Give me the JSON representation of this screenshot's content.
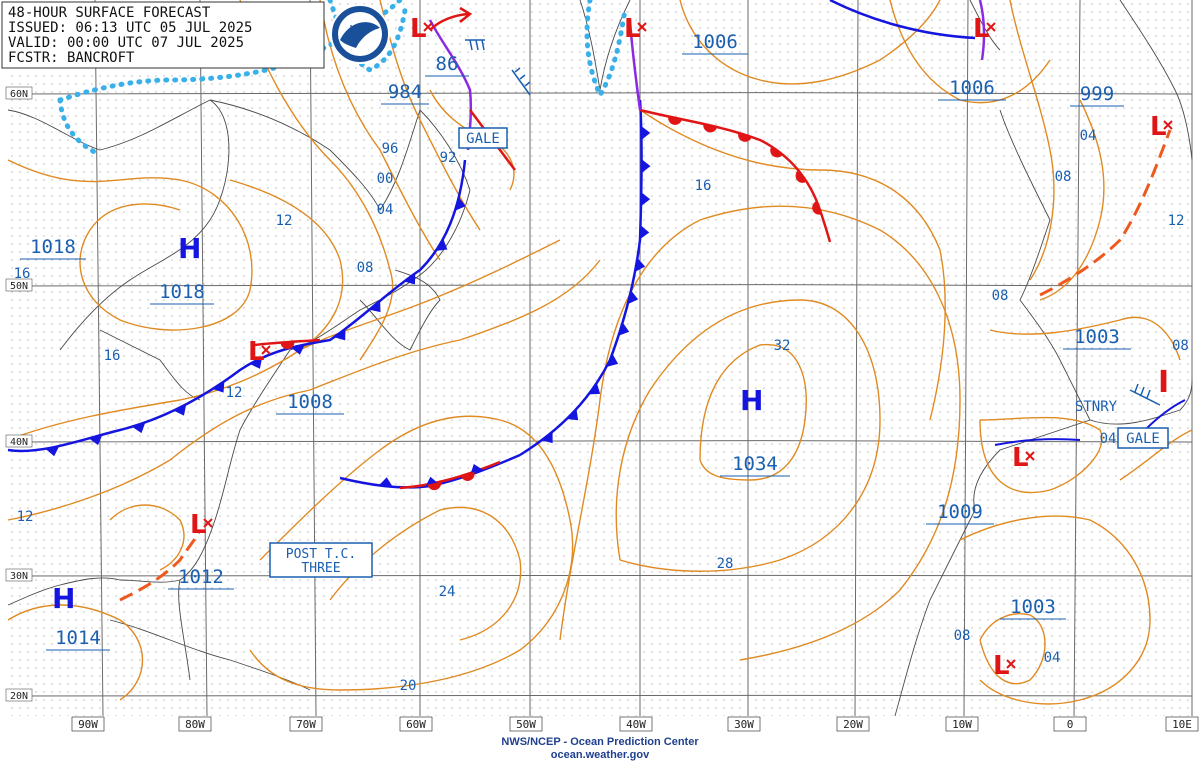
{
  "header": {
    "line1": "48-HOUR SURFACE FORECAST",
    "line2": "ISSUED: 06:13 UTC 05 JUL 2025",
    "line3": "VALID:  00:00 UTC 07 JUL 2025",
    "line4": "FCSTR: BANCROFT",
    "logo_text": "NOAA"
  },
  "footer": {
    "agency": "NWS/NCEP - Ocean Prediction Center",
    "site": "ocean.weather.gov"
  },
  "axes": {
    "lon_labels": [
      "90W",
      "80W",
      "70W",
      "60W",
      "50W",
      "40W",
      "30W",
      "20W",
      "10W",
      "0",
      "10E"
    ],
    "lat_labels": [
      "60N",
      "50N",
      "40N",
      "30N",
      "20N"
    ]
  },
  "pressure_centers": [
    {
      "type": "H",
      "label": "1018",
      "name": "high-great-lakes"
    },
    {
      "type": "H",
      "label": "1034",
      "name": "high-central-atlantic"
    },
    {
      "type": "H",
      "label": "1014",
      "name": "high-gulf"
    },
    {
      "type": "L",
      "label": "984",
      "name": "low-labrador"
    },
    {
      "type": "L",
      "label": "1008",
      "name": "low-new-england"
    },
    {
      "type": "L",
      "label": "1012",
      "name": "low-florida"
    },
    {
      "type": "L",
      "label": "1006",
      "name": "low-greenland"
    },
    {
      "type": "L",
      "label": "1006",
      "name": "low-iceland"
    },
    {
      "type": "L",
      "label": "999",
      "name": "low-scandinavia"
    },
    {
      "type": "L",
      "label": "1003",
      "name": "low-france"
    },
    {
      "type": "L",
      "label": "1009",
      "name": "low-iberia"
    },
    {
      "type": "L",
      "label": "1003",
      "name": "low-north-africa"
    }
  ],
  "extra_labels": {
    "high_1018_west": "1018",
    "low_86": "86"
  },
  "isobar_labels": [
    "96",
    "00",
    "04",
    "92",
    "12",
    "08",
    "16",
    "16",
    "12",
    "16",
    "32",
    "28",
    "24",
    "20",
    "12",
    "04",
    "08",
    "04",
    "08",
    "04",
    "08",
    "12"
  ],
  "annotations": {
    "gale1": "GALE",
    "gale2": "GALE",
    "stnry": "STNRY",
    "post_tc_line1": "POST T.C.",
    "post_tc_line2": "THREE",
    "partial_08": "08"
  },
  "colors": {
    "isobar": "#e08a22",
    "cold_front": "#1515e0",
    "warm_front": "#e01515",
    "occluded": "#8a2be2",
    "ice": "#3ab0ea",
    "label_blue": "#1a5fb0",
    "coast": "#4a4a4a",
    "grid": "#6a6a6a",
    "trough": "#ee5a1e"
  }
}
